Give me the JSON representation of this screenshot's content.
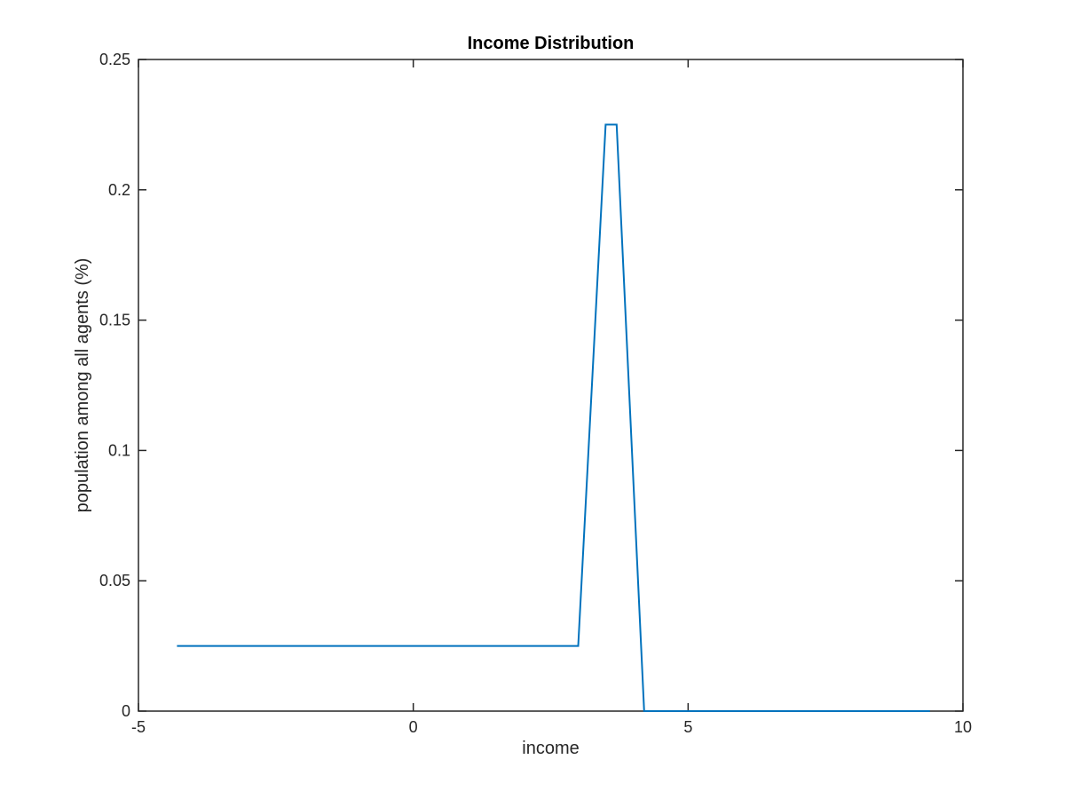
{
  "chart_data": {
    "type": "line",
    "title": "Income Distribution",
    "xlabel": "income",
    "ylabel": "population among all agents (%)",
    "xlim": [
      -5,
      10
    ],
    "ylim": [
      0,
      0.25
    ],
    "xticks": [
      -5,
      0,
      5,
      10
    ],
    "xtick_labels": [
      "-5",
      "0",
      "5",
      "10"
    ],
    "yticks": [
      0,
      0.05,
      0.1,
      0.15,
      0.2,
      0.25
    ],
    "ytick_labels": [
      "0",
      "0.05",
      "0.1",
      "0.15",
      "0.2",
      "0.25"
    ],
    "grid": false,
    "box": true,
    "series": [
      {
        "color": "#0072BD",
        "x": [
          -4.3,
          3.0,
          3.5,
          3.7,
          4.2,
          9.4
        ],
        "y": [
          0.025,
          0.025,
          0.225,
          0.225,
          0,
          0
        ]
      }
    ]
  }
}
